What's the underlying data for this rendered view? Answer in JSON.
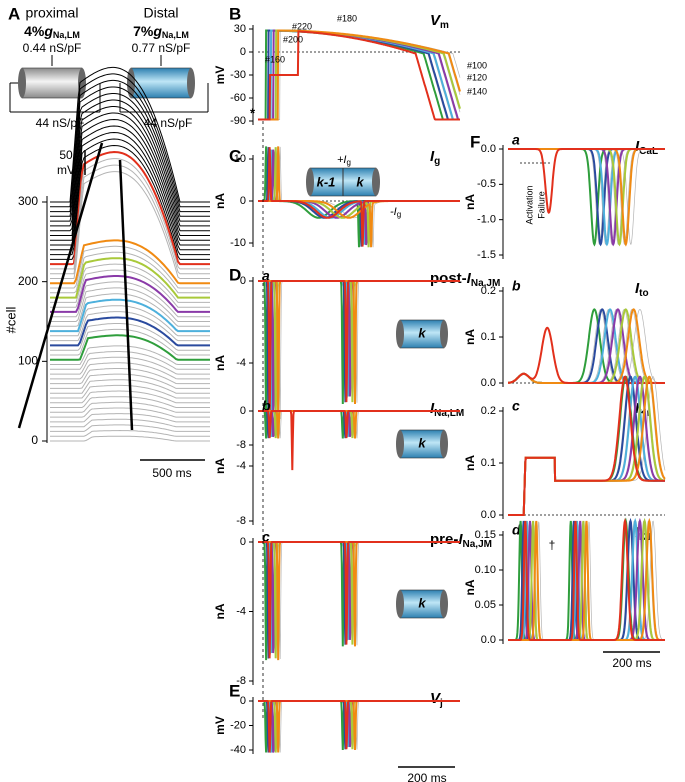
{
  "panel_a": {
    "label": "A",
    "proximal": {
      "name": "proximal",
      "pct": "4%",
      "g": "g",
      "sub": "Na,LM",
      "cond": "0.44 nS/pF"
    },
    "distal": {
      "name": "Distal",
      "pct": "7%",
      "g": "g",
      "sub": "Na,LM",
      "cond": "0.77 nS/pF"
    },
    "gap_left": "44 nS/pF",
    "gap_right": "44 nS/pF",
    "ylabel": "#cell",
    "ylim": [
      0,
      300
    ],
    "yticks": [
      0,
      100,
      200,
      300
    ],
    "scale_v": "50",
    "scale_v_unit": "mV",
    "scale_t": "500 ms"
  },
  "colors": [
    "#2f9e3c",
    "#2a4a9e",
    "#4db0dc",
    "#8a3aa8",
    "#a9c93a",
    "#f08a12",
    "#e2301c"
  ],
  "panels": [
    {
      "label": "B",
      "kind": "vm",
      "title": "V",
      "title_sub": "m",
      "ylabel": "mV",
      "ylim": [
        -90,
        30
      ],
      "yticks": [
        30,
        0,
        -30,
        -60,
        -90
      ],
      "notes": [
        "#220",
        "#200",
        "#180",
        "#160",
        "#100",
        "#120",
        "#140",
        "*"
      ]
    },
    {
      "label": "C",
      "kind": "ig",
      "title": "I",
      "title_sub": "g",
      "ylabel": "nA",
      "ylim": [
        -10,
        10
      ],
      "yticks": [
        10,
        0,
        -10
      ],
      "notes": [
        "k-1",
        "k",
        "+I",
        "g",
        "-I",
        "g"
      ]
    },
    {
      "label": "D",
      "sublabel": "a",
      "kind": "na",
      "title_pre": "post-",
      "title": "I",
      "title_sub": "Na,JM",
      "ylabel": "nA",
      "ylim": [
        -8,
        0
      ],
      "yticks": [
        0,
        -4,
        -8
      ],
      "notes": [
        "k"
      ]
    },
    {
      "sublabel": "b",
      "kind": "na2",
      "title": "I",
      "title_sub": "Na,LM",
      "ylabel": "nA",
      "ylim": [
        -8,
        0
      ],
      "yticks": [
        0,
        -4,
        -8
      ],
      "notes": [
        "k"
      ]
    },
    {
      "sublabel": "c",
      "kind": "na",
      "title_pre": "pre-",
      "title": "I",
      "title_sub": "Na,JM",
      "ylabel": "nA",
      "ylim": [
        -8,
        0
      ],
      "yticks": [
        0,
        -4,
        -8
      ],
      "notes": [
        "k"
      ]
    },
    {
      "label": "E",
      "kind": "vj",
      "title": "V",
      "title_sub": "j",
      "ylabel": "mV",
      "ylim": [
        -40,
        0
      ],
      "yticks": [
        0,
        -20,
        -40
      ],
      "scale_t": "200 ms"
    },
    {
      "label": "F",
      "sublabel": "a",
      "kind": "cal",
      "title": "I",
      "title_sub": "CaL",
      "ylabel": "nA",
      "ylim": [
        -1.5,
        0
      ],
      "yticks": [
        {
          "value": 0,
          "label": "0.0"
        },
        -0.5,
        {
          "value": -1,
          "label": "-1.0"
        },
        -1.5
      ],
      "notes": [
        "Activation",
        "Failure"
      ]
    },
    {
      "sublabel": "b",
      "kind": "ito",
      "title": "I",
      "title_sub": "to",
      "ylabel": "nA",
      "ylim": [
        0,
        0.2
      ],
      "yticks": [
        0.2,
        0.1,
        {
          "value": 0,
          "label": "0.0"
        }
      ]
    },
    {
      "sublabel": "c",
      "kind": "ikr",
      "title": "I",
      "title_sub": "Kr",
      "ylabel": "nA",
      "ylim": [
        0,
        0.2
      ],
      "yticks": [
        0.2,
        0.1,
        {
          "value": 0,
          "label": "0.0"
        }
      ]
    },
    {
      "sublabel": "d",
      "kind": "ik1",
      "title": "I",
      "title_sub": "K1",
      "ylabel": "nA",
      "ylim": [
        0,
        0.15
      ],
      "yticks": [
        0.15,
        {
          "value": 0.1,
          "label": "0.10"
        },
        0.05,
        {
          "value": 0,
          "label": "0.0"
        }
      ],
      "notes": [
        "†"
      ],
      "scale_t": "200 ms"
    }
  ]
}
